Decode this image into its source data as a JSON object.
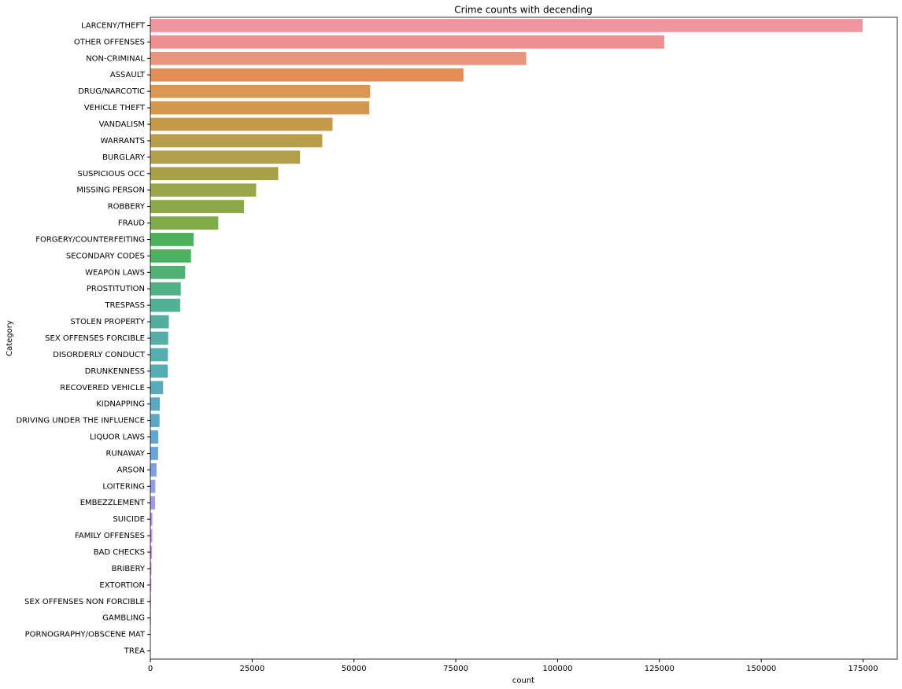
{
  "chart_data": {
    "type": "bar",
    "orientation": "horizontal",
    "title": "Crime counts with decending",
    "x_label": "count",
    "y_label": "Category",
    "categories": [
      "LARCENY/THEFT",
      "OTHER OFFENSES",
      "NON-CRIMINAL",
      "ASSAULT",
      "DRUG/NARCOTIC",
      "VEHICLE THEFT",
      "VANDALISM",
      "WARRANTS",
      "BURGLARY",
      "SUSPICIOUS OCC",
      "MISSING PERSON",
      "ROBBERY",
      "FRAUD",
      "FORGERY/COUNTERFEITING",
      "SECONDARY CODES",
      "WEAPON LAWS",
      "PROSTITUTION",
      "TRESPASS",
      "STOLEN PROPERTY",
      "SEX OFFENSES FORCIBLE",
      "DISORDERLY CONDUCT",
      "DRUNKENNESS",
      "RECOVERED VEHICLE",
      "KIDNAPPING",
      "DRIVING UNDER THE INFLUENCE",
      "LIQUOR LAWS",
      "RUNAWAY",
      "ARSON",
      "LOITERING",
      "EMBEZZLEMENT",
      "SUICIDE",
      "FAMILY OFFENSES",
      "BAD CHECKS",
      "BRIBERY",
      "EXTORTION",
      "SEX OFFENSES NON FORCIBLE",
      "GAMBLING",
      "PORNOGRAPHY/OBSCENE MAT",
      "TREA"
    ],
    "values": [
      174900,
      126182,
      92304,
      76876,
      53971,
      53781,
      44725,
      42214,
      36755,
      31414,
      25989,
      23000,
      16679,
      10609,
      9985,
      8555,
      7484,
      7326,
      4540,
      4388,
      4320,
      4280,
      3138,
      2341,
      2268,
      1946,
      1903,
      1513,
      1225,
      1166,
      508,
      491,
      406,
      289,
      256,
      148,
      146,
      22,
      6
    ],
    "colors": [
      "#f0969f",
      "#ef8f8f",
      "#e8977e",
      "#e48c55",
      "#d9974f",
      "#d4984d",
      "#c49a4a",
      "#b89e4a",
      "#b0a04a",
      "#a7a249",
      "#9aa648",
      "#8ca948",
      "#7fac48",
      "#4fb05a",
      "#4db15f",
      "#4fb174",
      "#50b086",
      "#52b094",
      "#53ae9f",
      "#54aea6",
      "#56adad",
      "#57acb2",
      "#58abb8",
      "#5aa9bf",
      "#5ca8c5",
      "#60a6d0",
      "#6aa3dc",
      "#7ea0e0",
      "#929ee4",
      "#a39ae5",
      "#b596e4",
      "#c693e1",
      "#d08fd8",
      "#d98fcc",
      "#e38fc0",
      "#e68fb5",
      "#ea90ac",
      "#ec91a5",
      "#ee929f"
    ],
    "xlim": [
      0,
      183400
    ],
    "xticks": [
      0,
      25000,
      50000,
      75000,
      100000,
      125000,
      150000,
      175000
    ]
  }
}
